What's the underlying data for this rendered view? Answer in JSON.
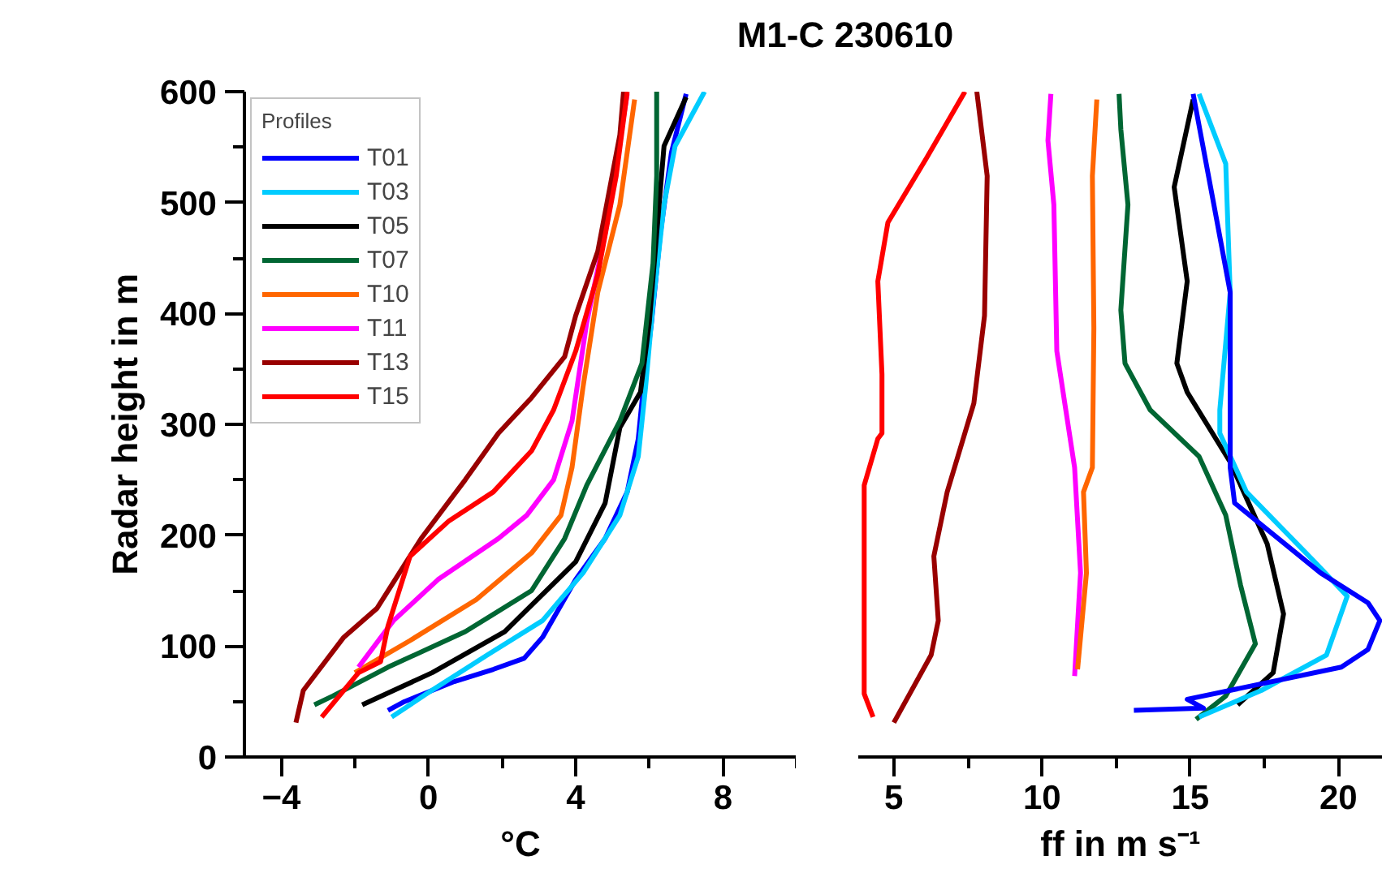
{
  "chart_data": [
    {
      "type": "line",
      "title": "M1-C 230610",
      "xlabel": "°C",
      "ylabel": "Radar height in m",
      "legend_title": "Profiles",
      "legend": "top left",
      "xlim": [
        -5,
        10
      ],
      "ylim": [
        0,
        600
      ],
      "xticks": [
        -4,
        {
          "value": -2,
          "label": null
        },
        0,
        {
          "value": 2,
          "label": null
        },
        4,
        {
          "value": 6,
          "label": null
        },
        8,
        {
          "value": 10,
          "label": null
        }
      ],
      "yticks": [
        0,
        {
          "value": 50,
          "label": null
        },
        100,
        {
          "value": 150,
          "label": null
        },
        200,
        {
          "value": 250,
          "label": null
        },
        300,
        {
          "value": 350,
          "label": null
        },
        400,
        {
          "value": 450,
          "label": null
        },
        500,
        {
          "value": 550,
          "label": null
        },
        600
      ],
      "series": [
        {
          "name": "T01",
          "color": "#0000ff",
          "x": [
            -1.1,
            -0.65,
            0.7,
            1.76,
            2.6,
            3.1,
            4.0,
            4.8,
            5.4,
            5.7,
            5.84,
            6.06,
            6.3,
            6.6,
            7.0
          ],
          "values": [
            42,
            50,
            68,
            79,
            89,
            108,
            160,
            197,
            239,
            287,
            334,
            392,
            472,
            545,
            598
          ]
        },
        {
          "name": "T03",
          "color": "#00ccff",
          "x": [
            -1.0,
            -0.05,
            1.6,
            3.1,
            4.2,
            5.2,
            5.7,
            5.9,
            6.1,
            6.4,
            6.7,
            7.5
          ],
          "values": [
            36,
            57,
            92,
            123,
            166,
            218,
            271,
            334,
            408,
            498,
            551,
            600
          ]
        },
        {
          "name": "T05",
          "color": "#000000",
          "x": [
            -1.8,
            0.1,
            2.07,
            4.0,
            4.8,
            5.2,
            5.76,
            6.0,
            6.2,
            6.4,
            7.0
          ],
          "values": [
            47,
            76,
            113,
            176,
            229,
            297,
            329,
            392,
            472,
            551,
            595
          ]
        },
        {
          "name": "T07",
          "color": "#006633",
          "x": [
            -3.1,
            -2.6,
            -1.1,
            1.0,
            2.8,
            3.7,
            4.3,
            5.2,
            5.8,
            6.1,
            6.2,
            6.2
          ],
          "values": [
            47,
            55,
            81,
            113,
            150,
            197,
            245,
            303,
            355,
            445,
            524,
            600
          ]
        },
        {
          "name": "T10",
          "color": "#ff6600",
          "x": [
            -2.0,
            -0.5,
            1.3,
            2.8,
            3.6,
            3.9,
            4.2,
            4.6,
            5.2,
            5.6
          ],
          "values": [
            76,
            105,
            142,
            184,
            218,
            261,
            334,
            419,
            498,
            593
          ]
        },
        {
          "name": "T11",
          "color": "#ff00ff",
          "x": [
            -1.9,
            -0.95,
            0.26,
            1.9,
            2.67,
            3.4,
            3.9,
            4.3,
            4.8,
            5.4
          ],
          "values": [
            81,
            123,
            160,
            197,
            218,
            250,
            303,
            392,
            472,
            598
          ]
        },
        {
          "name": "T13",
          "color": "#990000",
          "x": [
            -3.6,
            -3.4,
            -2.3,
            -1.4,
            -0.2,
            1.0,
            1.9,
            2.8,
            3.7,
            4.0,
            4.6,
            5.2,
            5.3
          ],
          "values": [
            31,
            60,
            108,
            134,
            197,
            250,
            292,
            324,
            361,
            398,
            456,
            561,
            600
          ]
        },
        {
          "name": "T15",
          "color": "#ff0000",
          "x": [
            -2.9,
            -1.9,
            -1.3,
            -1.1,
            -0.5,
            0.56,
            1.76,
            2.8,
            3.4,
            4.0,
            4.6,
            5.1,
            5.4
          ],
          "values": [
            36,
            76,
            86,
            118,
            181,
            213,
            239,
            276,
            313,
            366,
            435,
            524,
            600
          ]
        }
      ]
    },
    {
      "type": "line",
      "xlabel": "ff in m s⁻¹",
      "tick_labels": "x",
      "xlim": [
        3.8,
        21.5
      ],
      "ylim": [
        0,
        600
      ],
      "xticks": [
        5,
        {
          "value": 7.5,
          "label": null
        },
        10,
        {
          "value": 12.5,
          "label": null
        },
        15,
        {
          "value": 17.5,
          "label": null
        },
        20
      ],
      "series": [
        {
          "color": "#ff0000",
          "x": [
            4.3,
            4.0,
            4.0,
            4.46,
            4.6,
            4.6,
            4.46,
            4.8,
            6.1,
            7.4
          ],
          "values": [
            36,
            57,
            245,
            287,
            292,
            345,
            429,
            482,
            540,
            600
          ]
        },
        {
          "color": "#990000",
          "x": [
            5.0,
            6.26,
            6.5,
            6.35,
            6.8,
            7.7,
            8.06,
            8.15,
            7.8
          ],
          "values": [
            31,
            92,
            123,
            181,
            239,
            319,
            398,
            524,
            600
          ]
        },
        {
          "color": "#ff00ff",
          "x": [
            11.1,
            11.3,
            11.1,
            10.5,
            10.4,
            10.2,
            10.3
          ],
          "values": [
            73,
            166,
            261,
            366,
            498,
            556,
            598
          ]
        },
        {
          "color": "#ff6600",
          "x": [
            11.2,
            11.5,
            11.4,
            11.7,
            11.75,
            11.7,
            11.85
          ],
          "values": [
            79,
            166,
            239,
            261,
            387,
            524,
            593
          ]
        },
        {
          "color": "#006633",
          "x": [
            15.2,
            16.2,
            17.2,
            16.7,
            16.2,
            15.3,
            13.65,
            12.8,
            12.66,
            12.9,
            12.66,
            12.6
          ],
          "values": [
            34,
            55,
            102,
            155,
            218,
            271,
            313,
            355,
            403,
            498,
            566,
            598
          ]
        },
        {
          "color": "#000000",
          "x": [
            16.6,
            17.8,
            18.15,
            17.6,
            16.35,
            14.9,
            14.55,
            14.9,
            14.46,
            15.1
          ],
          "values": [
            47,
            76,
            129,
            192,
            266,
            329,
            355,
            429,
            514,
            593
          ]
        },
        {
          "color": "#00ccff",
          "x": [
            15.3,
            17.4,
            19.6,
            20.3,
            19.2,
            16.9,
            16.0,
            16.0,
            16.35,
            16.2,
            15.3
          ],
          "values": [
            36,
            60,
            92,
            145,
            176,
            239,
            292,
            313,
            419,
            535,
            598
          ]
        },
        {
          "color": "#0000ff",
          "x": [
            13.1,
            15.45,
            14.9,
            20.1,
            21.0,
            21.4,
            21.0,
            19.4,
            16.5,
            16.35,
            16.35,
            15.8,
            15.1
          ],
          "values": [
            42,
            44,
            52,
            81,
            97,
            123,
            139,
            166,
            229,
            261,
            419,
            498,
            598
          ]
        }
      ]
    }
  ]
}
